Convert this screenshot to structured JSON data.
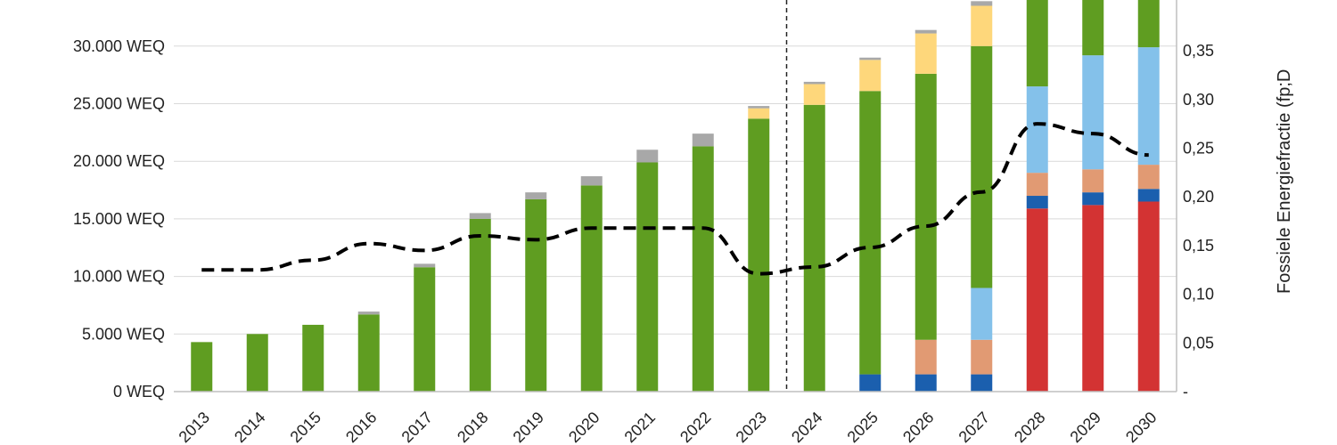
{
  "chart_data": {
    "type": "bar",
    "stacked": true,
    "grid": true,
    "categories": [
      "2013",
      "2014",
      "2015",
      "2016",
      "2017",
      "2018",
      "2019",
      "2020",
      "2021",
      "2022",
      "2023",
      "2024",
      "2025",
      "2026",
      "2027",
      "2028",
      "2029",
      "2030"
    ],
    "ylim": [
      0,
      35000
    ],
    "y_ticks": [
      0,
      5000,
      10000,
      15000,
      20000,
      25000,
      30000
    ],
    "y_tick_labels": [
      "0 WEQ",
      "5.000 WEQ",
      "10.000 WEQ",
      "15.000 WEQ",
      "20.000 WEQ",
      "25.000 WEQ",
      "30.000 WEQ"
    ],
    "y2lim": [
      0,
      0.4
    ],
    "y2_ticks": [
      0,
      0.05,
      0.1,
      0.15,
      0.2,
      0.25,
      0.3,
      0.35
    ],
    "y2_tick_labels": [
      "-",
      "0,05",
      "0,10",
      "0,15",
      "0,20",
      "0,25",
      "0,30",
      "0,35"
    ],
    "y2label": "Fossiele Energiefractie (fp;D",
    "forecast_divider_after": "2023",
    "series": [
      {
        "color": "#d33333",
        "values": [
          0,
          0,
          0,
          0,
          0,
          0,
          0,
          0,
          0,
          0,
          0,
          0,
          0,
          0,
          0,
          15900,
          16200,
          16500
        ]
      },
      {
        "color": "#1b5fae",
        "values": [
          0,
          0,
          0,
          0,
          0,
          0,
          0,
          0,
          0,
          0,
          0,
          0,
          1500,
          1500,
          1500,
          1100,
          1100,
          1100
        ]
      },
      {
        "color": "#e19a73",
        "values": [
          0,
          0,
          0,
          0,
          0,
          0,
          0,
          0,
          0,
          0,
          0,
          0,
          0,
          3000,
          3000,
          2000,
          2000,
          2100
        ]
      },
      {
        "color": "#84c1ea",
        "values": [
          0,
          0,
          0,
          0,
          0,
          0,
          0,
          0,
          0,
          0,
          0,
          0,
          0,
          0,
          4500,
          7500,
          9900,
          10200
        ]
      },
      {
        "color": "#5f9d21",
        "values": [
          4300,
          5000,
          5800,
          6700,
          10800,
          15000,
          16700,
          17900,
          19900,
          21300,
          23700,
          24900,
          24600,
          23100,
          21000,
          10000,
          9000,
          8500
        ]
      },
      {
        "color": "#fed77b",
        "values": [
          0,
          0,
          0,
          0,
          0,
          0,
          0,
          0,
          0,
          0,
          900,
          1800,
          2700,
          3500,
          3500,
          0,
          0,
          0
        ]
      },
      {
        "color": "#a8a8a8",
        "values": [
          0,
          0,
          0,
          250,
          300,
          500,
          600,
          800,
          1100,
          1100,
          200,
          200,
          200,
          300,
          400,
          0,
          0,
          0
        ]
      }
    ],
    "line": {
      "color": "#000000",
      "style": "dashed",
      "axis": "right",
      "values": [
        0.125,
        0.125,
        0.135,
        0.152,
        0.145,
        0.16,
        0.156,
        0.168,
        0.168,
        0.168,
        0.121,
        0.128,
        0.148,
        0.17,
        0.205,
        0.275,
        0.265,
        0.243
      ]
    }
  }
}
